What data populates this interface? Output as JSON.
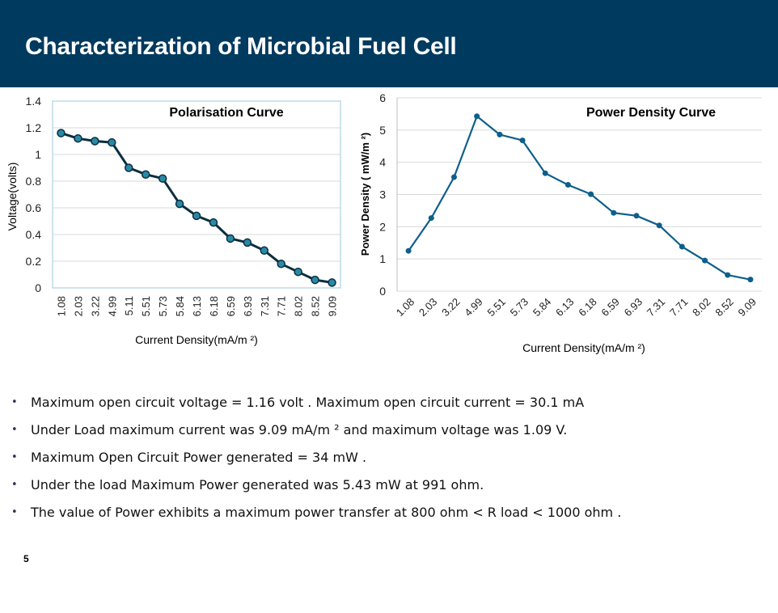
{
  "slide": {
    "title": "Characterization of Microbial Fuel Cell",
    "page_number": "5",
    "bullets": [
      "Maximum open circuit voltage = 1.16 volt . Maximum open circuit current = 30.1 mA",
      "Under Load maximum current  was 9.09 mA/m ² and maximum voltage was 1.09 V.",
      "Maximum Open Circuit Power generated = 34 mW .",
      "Under the load Maximum Power generated was 5.43 mW at 991 ohm.",
      "The value of Power exhibits a maximum power transfer  at 800 ohm < R load < 1000 ohm ."
    ],
    "bullet_marker": "•"
  },
  "colors": {
    "banner": "#003a5f",
    "polarisation_line": "#0a2f3f",
    "polarisation_marker": "#2a8aa6",
    "power_line": "#0e5f8a",
    "grid": "#d9d9d9"
  },
  "chart_data": [
    {
      "type": "line",
      "title": "Polarisation Curve",
      "xlabel": "Current Density(mA/m ²)",
      "ylabel": "Voltage(volts)",
      "categories": [
        "1.08",
        "2.03",
        "3.22",
        "4.99",
        "5.11",
        "5.51",
        "5.73",
        "5.84",
        "6.13",
        "6.18",
        "6.59",
        "6.93",
        "7.31",
        "7.71",
        "8.02",
        "8.52",
        "9.09"
      ],
      "values": [
        1.16,
        1.12,
        1.1,
        1.09,
        0.9,
        0.85,
        0.82,
        0.63,
        0.54,
        0.49,
        0.37,
        0.34,
        0.28,
        0.18,
        0.12,
        0.06,
        0.04
      ],
      "ylim": [
        0,
        1.4
      ],
      "yticks": [
        "0",
        "0.2",
        "0.4",
        "0.6",
        "0.8",
        "1",
        "1.2",
        "1.4"
      ],
      "grid": true
    },
    {
      "type": "line",
      "title": "Power Density Curve",
      "xlabel": "Current Density(mA/m ²)",
      "ylabel": "Power Density ( mW/m ²)",
      "categories": [
        "1.08",
        "2.03",
        "3.22",
        "4.99",
        "5.51",
        "5.73",
        "5.84",
        "6.13",
        "6.18",
        "6.59",
        "6.93",
        "7.31",
        "7.71",
        "8.02",
        "8.52",
        "9.09"
      ],
      "values": [
        1.25,
        2.27,
        3.54,
        5.43,
        4.86,
        4.68,
        3.66,
        3.3,
        3.01,
        2.43,
        2.34,
        2.04,
        1.38,
        0.95,
        0.5,
        0.36
      ],
      "ylim": [
        0,
        6
      ],
      "yticks": [
        "0",
        "1",
        "2",
        "3",
        "4",
        "5",
        "6"
      ],
      "grid": true
    }
  ]
}
